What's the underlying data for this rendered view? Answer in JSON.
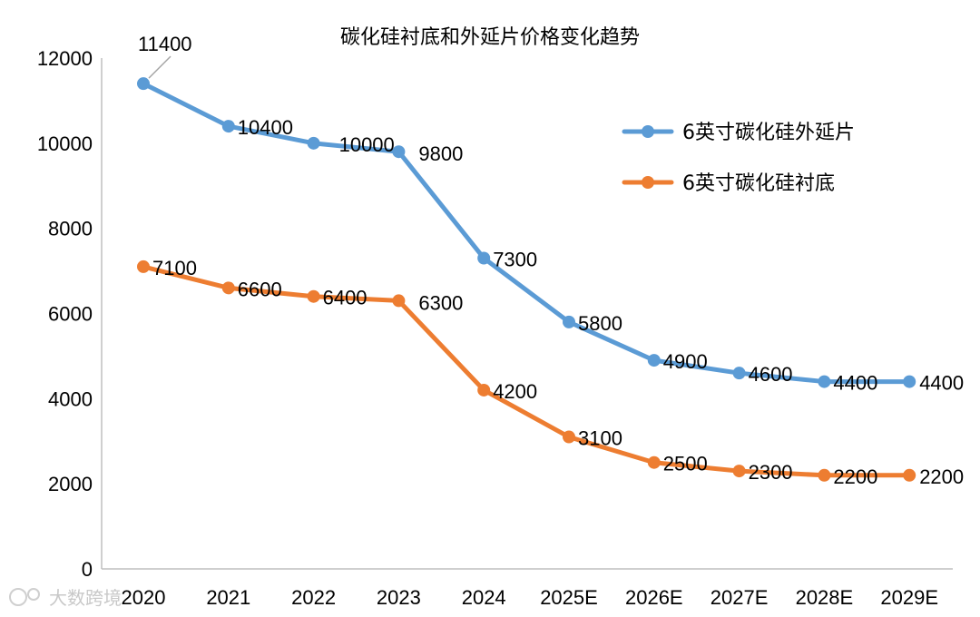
{
  "chart_data": {
    "type": "line",
    "title": "碳化硅衬底和外延片价格变化趋势",
    "categories": [
      "2020",
      "2021",
      "2022",
      "2023",
      "2024",
      "2025E",
      "2026E",
      "2027E",
      "2028E",
      "2029E"
    ],
    "series": [
      {
        "name": "6英寸碳化硅外延片",
        "color": "#5b9bd5",
        "values": [
          11400,
          10400,
          10000,
          9800,
          7300,
          5800,
          4900,
          4600,
          4400,
          4400
        ]
      },
      {
        "name": "6英寸碳化硅衬底",
        "color": "#ed7d31",
        "values": [
          7100,
          6600,
          6400,
          6300,
          4200,
          3100,
          2500,
          2300,
          2200,
          2200
        ]
      }
    ],
    "ylim": [
      0,
      12000
    ],
    "yticks": [
      0,
      2000,
      4000,
      6000,
      8000,
      10000,
      12000
    ],
    "xlabel": "",
    "ylabel": "",
    "grid": false,
    "legend": "right"
  },
  "watermark": "大数跨境"
}
